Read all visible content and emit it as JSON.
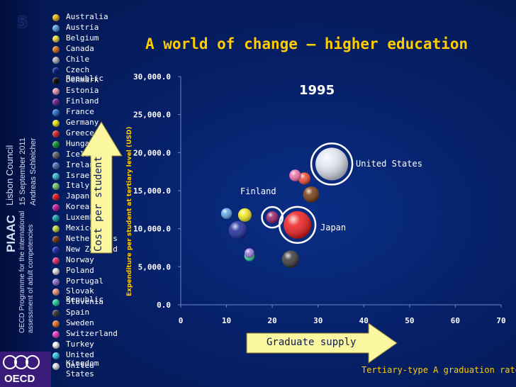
{
  "slide_number": "5",
  "sidebar": {
    "line1": "PIAAC",
    "line2": "Lisbon Council",
    "line3": "15 September 2011",
    "line4": "Andreas Schleicher",
    "line5": "OECD Programme for the international",
    "line6": "assessment of adult competencies",
    "logo_text": "OECD"
  },
  "title": "A world of change – higher education",
  "legend": [
    {
      "label": "Australia",
      "color": "#f0c020"
    },
    {
      "label": "Austria",
      "color": "#5fa8e8"
    },
    {
      "label": "Belgium",
      "color": "#f2e04a"
    },
    {
      "label": "Canada",
      "color": "#e07a28"
    },
    {
      "label": "Chile",
      "color": "#b8bcc8"
    },
    {
      "label": "Czech Republic",
      "color": "#0c1e8a"
    },
    {
      "label": "Denmark",
      "color": "#111111"
    },
    {
      "label": "Estonia",
      "color": "#f0a0b8"
    },
    {
      "label": "Finland",
      "color": "#7a2a9a"
    },
    {
      "label": "France",
      "color": "#3a7ad8"
    },
    {
      "label": "Germany",
      "color": "#f4e820"
    },
    {
      "label": "Greece",
      "color": "#e03030"
    },
    {
      "label": "Hungary",
      "color": "#1e9a3a"
    },
    {
      "label": "Iceland",
      "color": "#6a6a6a"
    },
    {
      "label": "Ireland",
      "color": "#5a78b8"
    },
    {
      "label": "Israel",
      "color": "#40c0d8"
    },
    {
      "label": "Italy",
      "color": "#7ad070"
    },
    {
      "label": "Japan",
      "color": "#e82020"
    },
    {
      "label": "Korea",
      "color": "#d020a0"
    },
    {
      "label": "Luxembourg",
      "color": "#20a8b0"
    },
    {
      "label": "Mexico",
      "color": "#c8e040"
    },
    {
      "label": "Netherlands",
      "color": "#7a3a10"
    },
    {
      "label": "New Zealand",
      "color": "#2a30b0"
    },
    {
      "label": "Norway",
      "color": "#e83878"
    },
    {
      "label": "Poland",
      "color": "#e8e8e8"
    },
    {
      "label": "Portugal",
      "color": "#9a7ad8"
    },
    {
      "label": "Slovak Republic",
      "color": "#f0a080"
    },
    {
      "label": "Slovenia",
      "color": "#30d8a0"
    },
    {
      "label": "Spain",
      "color": "#404040"
    },
    {
      "label": "Sweden",
      "color": "#f07838"
    },
    {
      "label": "Switzerland",
      "color": "#f048c8"
    },
    {
      "label": "Turkey",
      "color": "#ffffff"
    },
    {
      "label": "United Kingdom",
      "color": "#40d0e8"
    },
    {
      "label": "United States",
      "color": "#e8ecf4"
    }
  ],
  "annotations": {
    "year": "1995",
    "finland": "Finland",
    "japan": "Japan",
    "united_states": "United States",
    "cost_arrow": "Cost per student",
    "supply_arrow": "Graduate supply"
  },
  "chart_data": {
    "type": "scatter",
    "title": "A world of change – higher education",
    "subtitle": "1995",
    "xlabel": "Tertiary-type A graduation rate",
    "ylabel": "Expenditure per student at tertiary level (USD)",
    "xlim": [
      0,
      70
    ],
    "ylim": [
      0,
      30000
    ],
    "x_ticks": [
      "0",
      "10",
      "20",
      "30",
      "40",
      "50",
      "60",
      "70"
    ],
    "y_ticks": [
      "0.0",
      "5,000.0",
      "10,000.0",
      "15,000.0",
      "20,000.0",
      "25,000.0",
      "30,000.0"
    ],
    "grid": "none",
    "points": [
      {
        "country": "United States",
        "x": 33,
        "y": 18500,
        "size": 1.0,
        "color": "#dfe6f2",
        "outlined": true
      },
      {
        "country": "Japan",
        "x": 25.5,
        "y": 10500,
        "size": 0.8,
        "color": "#ee1c1c",
        "outlined": true
      },
      {
        "country": "Finland",
        "x": 20,
        "y": 11500,
        "size": 0.2,
        "color": "#9a1e6a",
        "outlined": true
      },
      {
        "country": "Germany",
        "x": 14,
        "y": 11800,
        "size": 0.25,
        "color": "#f4e820"
      },
      {
        "country": "France",
        "x": 12.5,
        "y": 9800,
        "size": 0.45,
        "color": "#1c2a9a"
      },
      {
        "country": "Austria",
        "x": 10,
        "y": 12000,
        "size": 0.15,
        "color": "#5fa8e8"
      },
      {
        "country": "Netherlands",
        "x": 28.5,
        "y": 14500,
        "size": 0.35,
        "color": "#7a3a10"
      },
      {
        "country": "Norway",
        "x": 25,
        "y": 17000,
        "size": 0.18,
        "color": "#f070a8"
      },
      {
        "country": "Sweden",
        "x": 27,
        "y": 16600,
        "size": 0.2,
        "color": "#e84a30"
      },
      {
        "country": "Spain",
        "x": 24,
        "y": 6000,
        "size": 0.4,
        "color": "#3a3a3a"
      },
      {
        "country": "Slovenia",
        "x": 15,
        "y": 6400,
        "size": 0.12,
        "color": "#30d890"
      },
      {
        "country": "Portugal",
        "x": 15,
        "y": 6800,
        "size": 0.1,
        "color": "#9a7ad8"
      }
    ]
  }
}
